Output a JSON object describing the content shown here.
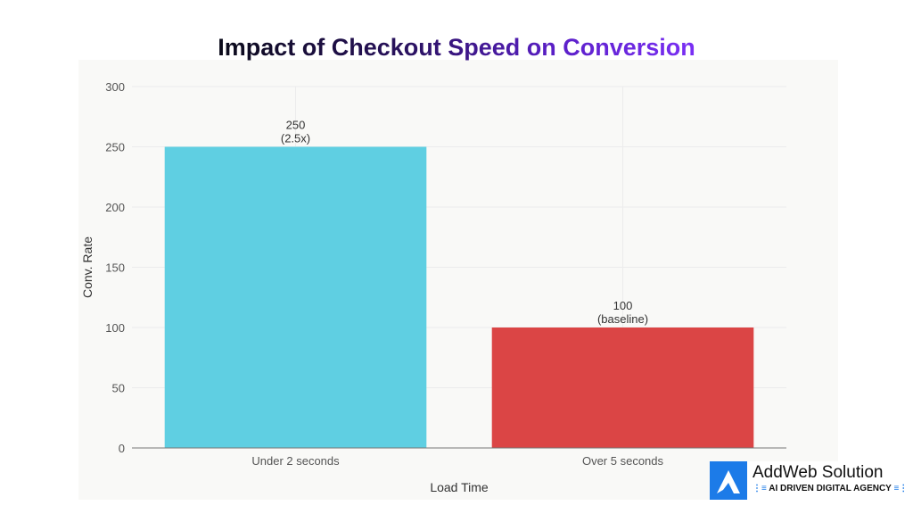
{
  "chart_data": {
    "type": "bar",
    "title": "Impact of Checkout Speed on Conversion",
    "xlabel": "Load Time",
    "ylabel": "Conv. Rate",
    "categories": [
      "Under 2 seconds",
      "Over 5 seconds"
    ],
    "values": [
      250,
      100
    ],
    "data_labels": [
      [
        "250",
        "(2.5x)"
      ],
      [
        "100",
        "(baseline)"
      ]
    ],
    "colors": [
      "#5fcfe2",
      "#db4545"
    ],
    "ylim": [
      0,
      300
    ],
    "yticks": [
      0,
      50,
      100,
      150,
      200,
      250,
      300
    ],
    "grid": true
  },
  "logo": {
    "name": "AddWeb Solution",
    "tagline": "AI DRIVEN DIGITAL AGENCY",
    "color": "#1c7be8"
  }
}
